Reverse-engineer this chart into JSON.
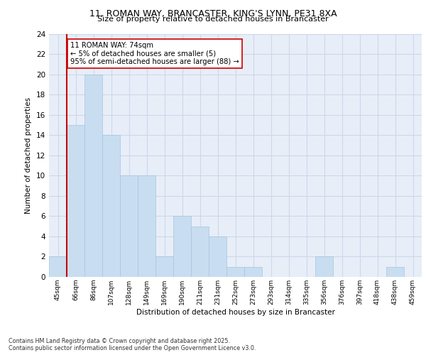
{
  "title_line1": "11, ROMAN WAY, BRANCASTER, KING'S LYNN, PE31 8XA",
  "title_line2": "Size of property relative to detached houses in Brancaster",
  "xlabel": "Distribution of detached houses by size in Brancaster",
  "ylabel": "Number of detached properties",
  "categories": [
    "45sqm",
    "66sqm",
    "86sqm",
    "107sqm",
    "128sqm",
    "149sqm",
    "169sqm",
    "190sqm",
    "211sqm",
    "231sqm",
    "252sqm",
    "273sqm",
    "293sqm",
    "314sqm",
    "335sqm",
    "356sqm",
    "376sqm",
    "397sqm",
    "418sqm",
    "438sqm",
    "459sqm"
  ],
  "values": [
    2,
    15,
    20,
    14,
    10,
    10,
    2,
    6,
    5,
    4,
    1,
    1,
    0,
    0,
    0,
    2,
    0,
    0,
    0,
    1,
    0
  ],
  "bar_color": "#c8ddf0",
  "bar_edge_color": "#a8c4e0",
  "grid_color": "#ccd8ea",
  "background_color": "#e8eef8",
  "vline_color": "#cc0000",
  "annotation_text": "11 ROMAN WAY: 74sqm\n← 5% of detached houses are smaller (5)\n95% of semi-detached houses are larger (88) →",
  "annotation_box_color": "#ffffff",
  "annotation_box_edge": "#cc0000",
  "ylim": [
    0,
    24
  ],
  "yticks": [
    0,
    2,
    4,
    6,
    8,
    10,
    12,
    14,
    16,
    18,
    20,
    22,
    24
  ],
  "footnote": "Contains HM Land Registry data © Crown copyright and database right 2025.\nContains public sector information licensed under the Open Government Licence v3.0."
}
